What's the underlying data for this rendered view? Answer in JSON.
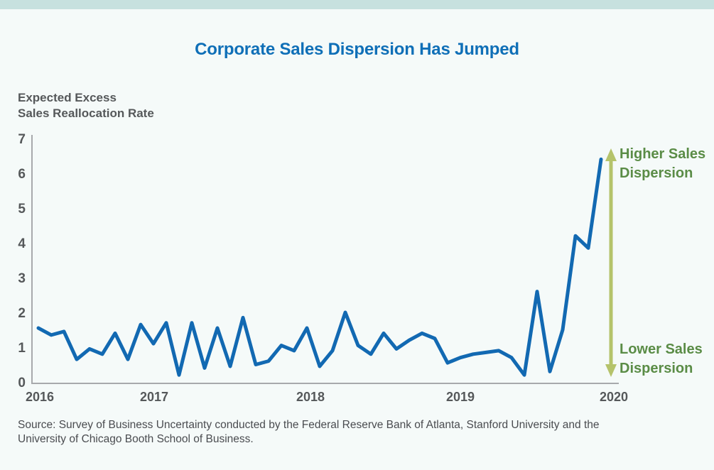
{
  "page": {
    "title": "Corporate Sales Dispersion Has Jumped"
  },
  "y_axis_title": {
    "line1": "Expected Excess",
    "line2": "Sales Reallocation Rate"
  },
  "annotations": {
    "higher": {
      "line1": "Higher Sales",
      "line2": "Dispersion"
    },
    "lower": {
      "line1": "Lower Sales",
      "line2": "Dispersion"
    }
  },
  "source": {
    "line1": "Source: Survey of Business Uncertainty conducted by the Federal Reserve Bank of Atlanta, Stanford University and the",
    "line2": "University of Chicago Booth School of Business."
  },
  "colors": {
    "topbar": "#c7e1df",
    "background": "#f5faf9",
    "title_blue": "#0f6fb7",
    "line_blue": "#1269b2",
    "axis_gray": "#a7a9ac",
    "tick_text_gray": "#55585a",
    "arrow_green": "#b5c36b",
    "annotation_green": "#5a8c46",
    "source_gray": "#4a4c50"
  },
  "chart_data": {
    "type": "line",
    "title": "Corporate Sales Dispersion Has Jumped",
    "xlabel": "",
    "ylabel": "Expected Excess Sales Reallocation Rate",
    "ylim": [
      0,
      7
    ],
    "y_ticks": [
      0,
      1,
      2,
      3,
      4,
      5,
      6,
      7
    ],
    "x_tick_labels": [
      "2016",
      "2017",
      "2018",
      "2019",
      "2020"
    ],
    "grid": false,
    "legend": "none",
    "frequency": "monthly",
    "x_decimal_years_start": 2016.25,
    "x_step_years": 0.0833,
    "series": [
      {
        "name": "Expected excess sales reallocation rate",
        "values": [
          1.55,
          1.35,
          1.45,
          0.65,
          0.95,
          0.8,
          1.4,
          0.65,
          1.65,
          1.1,
          1.7,
          0.2,
          1.7,
          0.4,
          1.55,
          0.45,
          1.85,
          0.5,
          0.6,
          1.05,
          0.9,
          1.55,
          0.45,
          0.9,
          2.0,
          1.05,
          0.8,
          1.4,
          0.95,
          1.2,
          1.4,
          1.25,
          0.55,
          0.7,
          0.8,
          0.85,
          0.9,
          0.7,
          0.2,
          2.6,
          0.3,
          1.5,
          4.2,
          3.85,
          6.4
        ]
      }
    ],
    "annotation_arrow": {
      "top_label": "Higher Sales Dispersion",
      "bottom_label": "Lower Sales Dispersion"
    }
  }
}
